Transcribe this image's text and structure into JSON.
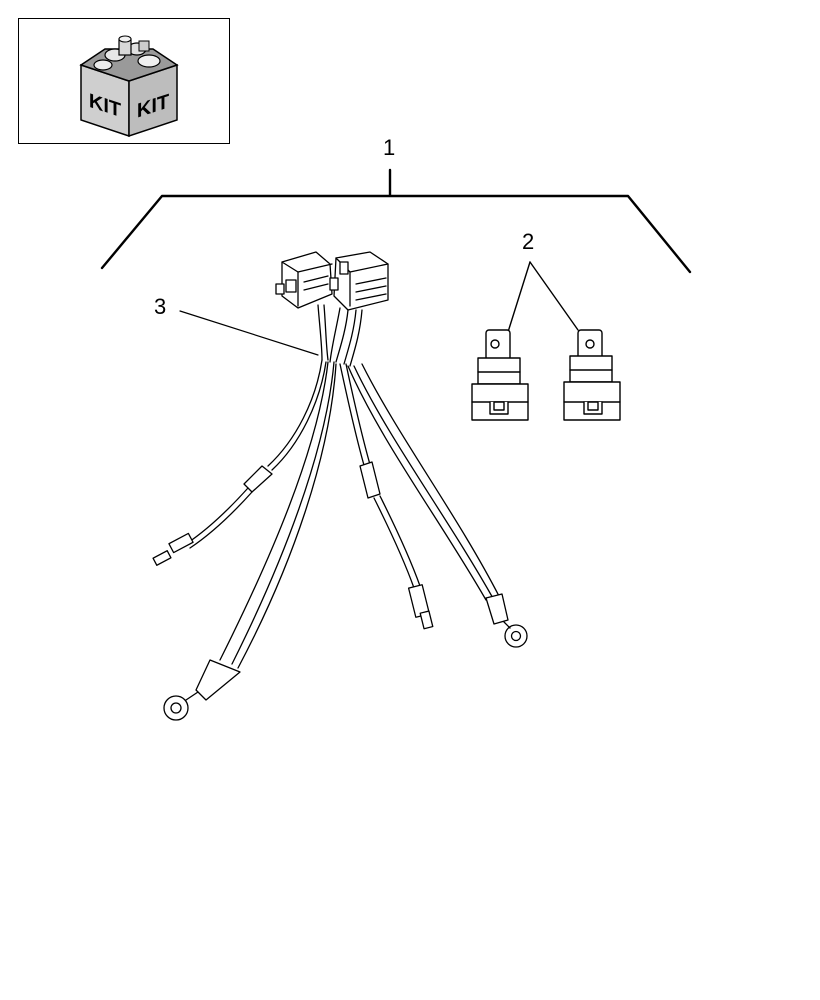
{
  "kit_icon": {
    "face_left_label": "KIT",
    "face_right_label": "KIT",
    "icon_name": "kit-box-icon"
  },
  "callouts": {
    "assembly": "1",
    "relays": "2",
    "harness": "3"
  },
  "parts": {
    "relay_count": 2,
    "connector_count": 2
  }
}
